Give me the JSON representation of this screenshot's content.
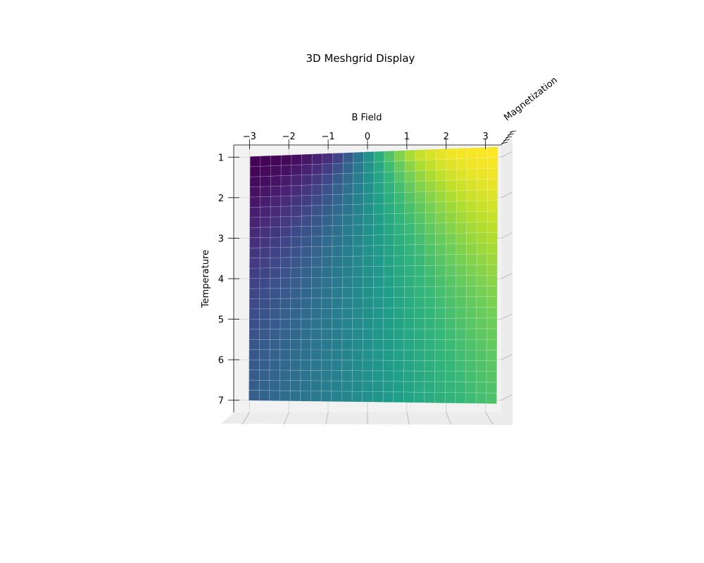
{
  "chart_data": {
    "type": "surface",
    "title": "3D Meshgrid Display",
    "xlabel": "B Field",
    "ylabel": "Temperature",
    "zlabel": "Magnetization",
    "x_ticks": [
      "−3",
      "−2",
      "−1",
      "0",
      "1",
      "2",
      "3"
    ],
    "x_tick_values": [
      -3,
      -2,
      -1,
      0,
      1,
      2,
      3
    ],
    "y_ticks": [
      "1",
      "2",
      "3",
      "4",
      "5",
      "6",
      "7"
    ],
    "y_tick_values": [
      1,
      2,
      3,
      4,
      5,
      6,
      7
    ],
    "xlim": [
      -3.4,
      3.4
    ],
    "ylim": [
      0.7,
      7.3
    ],
    "zlim": [
      -1,
      1
    ],
    "surface": {
      "function": "tanh(B / T)",
      "x_range": [
        -3,
        3.3
      ],
      "y_range": [
        1,
        7
      ],
      "x_cells": 24,
      "y_cells": 24
    },
    "colormap": "viridis",
    "view": "top-down",
    "pane_color": "#f2f2f2",
    "grid": true
  }
}
